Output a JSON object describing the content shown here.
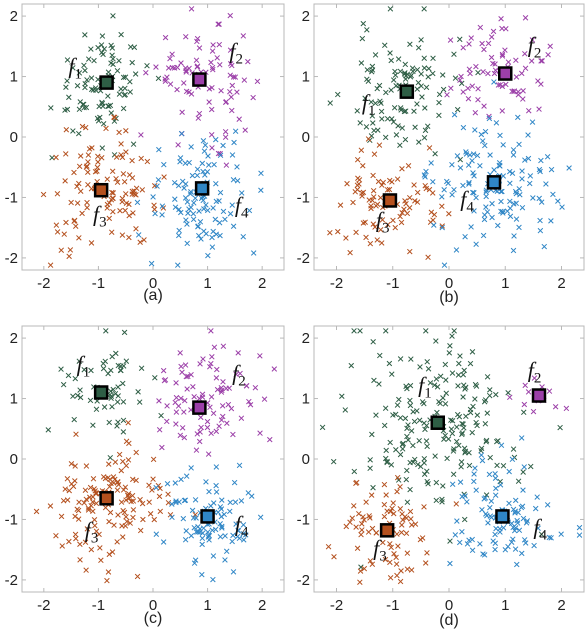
{
  "colors": {
    "f1": "#2e5e45",
    "f2": "#9b3fa8",
    "f3": "#b4501e",
    "f4": "#2f86c6",
    "frame": "#b8b8b8"
  },
  "chart_data": [
    {
      "type": "scatter",
      "caption": "(a)",
      "xlim": [
        -2.4,
        2.4
      ],
      "ylim": [
        -2.2,
        2.2
      ],
      "xticks": [
        -2,
        -1,
        0,
        1,
        2
      ],
      "yticks": [
        -2,
        -1,
        0,
        1,
        2
      ],
      "grid": false,
      "clusters": [
        {
          "label": "f",
          "sub": "1",
          "color_key": "f1",
          "cx": -0.95,
          "cy": 0.9,
          "spread": 0.45,
          "count": 90,
          "centroid": [
            -0.85,
            0.9
          ],
          "label_pos": [
            -1.55,
            1.05
          ]
        },
        {
          "label": "f",
          "sub": "2",
          "color_key": "f2",
          "cx": 0.95,
          "cy": 0.95,
          "spread": 0.45,
          "count": 90,
          "centroid": [
            0.85,
            0.95
          ],
          "label_pos": [
            1.4,
            1.3
          ]
        },
        {
          "label": "f",
          "sub": "3",
          "color_key": "f3",
          "cx": -0.9,
          "cy": -0.95,
          "spread": 0.5,
          "count": 110,
          "centroid": [
            -0.95,
            -0.88
          ],
          "label_pos": [
            -1.1,
            -1.4
          ]
        },
        {
          "label": "f",
          "sub": "4",
          "color_key": "f4",
          "cx": 0.9,
          "cy": -0.95,
          "spread": 0.5,
          "count": 110,
          "centroid": [
            0.9,
            -0.85
          ],
          "label_pos": [
            1.5,
            -1.25
          ]
        }
      ]
    },
    {
      "type": "scatter",
      "caption": "(b)",
      "xlim": [
        -2.4,
        2.4
      ],
      "ylim": [
        -2.2,
        2.2
      ],
      "xticks": [
        -2,
        -1,
        0,
        1,
        2
      ],
      "yticks": [
        -2,
        -1,
        0,
        1,
        2
      ],
      "grid": false,
      "clusters": [
        {
          "label": "f",
          "sub": "1",
          "color_key": "f1",
          "cx": -0.8,
          "cy": 0.7,
          "spread": 0.55,
          "count": 110,
          "centroid": [
            -0.75,
            0.75
          ],
          "label_pos": [
            -1.55,
            0.45
          ]
        },
        {
          "label": "f",
          "sub": "2",
          "color_key": "f2",
          "cx": 1.0,
          "cy": 1.1,
          "spread": 0.42,
          "count": 70,
          "centroid": [
            1.0,
            1.05
          ],
          "label_pos": [
            1.4,
            1.4
          ]
        },
        {
          "label": "f",
          "sub": "3",
          "color_key": "f3",
          "cx": -1.1,
          "cy": -1.05,
          "spread": 0.45,
          "count": 90,
          "centroid": [
            -1.05,
            -1.05
          ],
          "label_pos": [
            -1.3,
            -1.5
          ]
        },
        {
          "label": "f",
          "sub": "4",
          "color_key": "f4",
          "cx": 0.8,
          "cy": -0.85,
          "spread": 0.55,
          "count": 130,
          "centroid": [
            0.8,
            -0.75
          ],
          "label_pos": [
            0.2,
            -1.15
          ]
        }
      ]
    },
    {
      "type": "scatter",
      "caption": "(c)",
      "xlim": [
        -2.4,
        2.4
      ],
      "ylim": [
        -2.2,
        2.2
      ],
      "xticks": [
        -2,
        -1,
        0,
        1,
        2
      ],
      "yticks": [
        -2,
        -1,
        0,
        1,
        2
      ],
      "grid": false,
      "clusters": [
        {
          "label": "f",
          "sub": "1",
          "color_key": "f1",
          "cx": -0.95,
          "cy": 1.1,
          "spread": 0.38,
          "count": 60,
          "centroid": [
            -0.95,
            1.1
          ],
          "label_pos": [
            -1.4,
            1.45
          ]
        },
        {
          "label": "f",
          "sub": "2",
          "color_key": "f2",
          "cx": 0.95,
          "cy": 0.95,
          "spread": 0.45,
          "count": 90,
          "centroid": [
            0.85,
            0.85
          ],
          "label_pos": [
            1.45,
            1.3
          ]
        },
        {
          "label": "f",
          "sub": "3",
          "color_key": "f3",
          "cx": -0.85,
          "cy": -0.75,
          "spread": 0.55,
          "count": 140,
          "centroid": [
            -0.85,
            -0.65
          ],
          "label_pos": [
            -1.25,
            -1.3
          ]
        },
        {
          "label": "f",
          "sub": "4",
          "color_key": "f4",
          "cx": 1.0,
          "cy": -1.0,
          "spread": 0.45,
          "count": 100,
          "centroid": [
            1.0,
            -0.95
          ],
          "label_pos": [
            1.5,
            -1.2
          ]
        }
      ]
    },
    {
      "type": "scatter",
      "caption": "(d)",
      "xlim": [
        -2.4,
        2.4
      ],
      "ylim": [
        -2.2,
        2.2
      ],
      "xticks": [
        -2,
        -1,
        0,
        1,
        2
      ],
      "yticks": [
        -2,
        -1,
        0,
        1,
        2
      ],
      "grid": false,
      "clusters": [
        {
          "label": "f",
          "sub": "1",
          "color_key": "f1",
          "cx": -0.2,
          "cy": 0.55,
          "spread": 0.75,
          "count": 200,
          "centroid": [
            -0.2,
            0.6
          ],
          "label_pos": [
            -0.55,
            1.1
          ]
        },
        {
          "label": "f",
          "sub": "2",
          "color_key": "f2",
          "cx": 1.6,
          "cy": 1.05,
          "spread": 0.2,
          "count": 12,
          "centroid": [
            1.6,
            1.05
          ],
          "label_pos": [
            1.4,
            1.35
          ]
        },
        {
          "label": "f",
          "sub": "3",
          "color_key": "f3",
          "cx": -1.1,
          "cy": -1.1,
          "spread": 0.42,
          "count": 80,
          "centroid": [
            -1.1,
            -1.18
          ],
          "label_pos": [
            -1.35,
            -1.6
          ]
        },
        {
          "label": "f",
          "sub": "4",
          "color_key": "f4",
          "cx": 0.95,
          "cy": -0.95,
          "spread": 0.45,
          "count": 100,
          "centroid": [
            0.95,
            -0.95
          ],
          "label_pos": [
            1.5,
            -1.25
          ]
        }
      ]
    }
  ]
}
